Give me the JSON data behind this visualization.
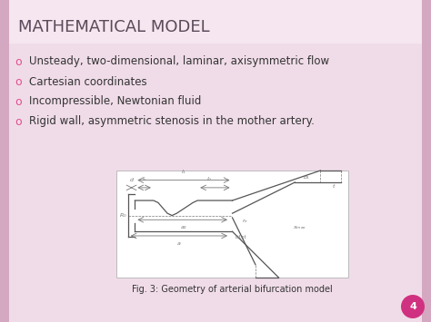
{
  "title": "MATHEMATICAL MODEL",
  "title_color": "#5a4a5a",
  "title_fontsize": 13,
  "slide_bg": "#e8ccd8",
  "content_bg": "#f0dce8",
  "title_bg": "#f5e4ee",
  "bullet_color": "#e05090",
  "bullets": [
    "Unsteady, two-dimensional, laminar, axisymmetric flow",
    "Cartesian coordinates",
    "Incompressible, Newtonian fluid",
    "Rigid wall, asymmetric stenosis in the mother artery."
  ],
  "bullet_fontsize": 8.5,
  "fig_caption": "Fig. 3: Geometry of arterial bifurcation model",
  "caption_fontsize": 7,
  "page_number": "4",
  "page_circle_color": "#d03080",
  "page_text_color": "#ffffff",
  "line_color": "#555555",
  "dim_color": "#777777",
  "dim_fontsize": 4.5
}
